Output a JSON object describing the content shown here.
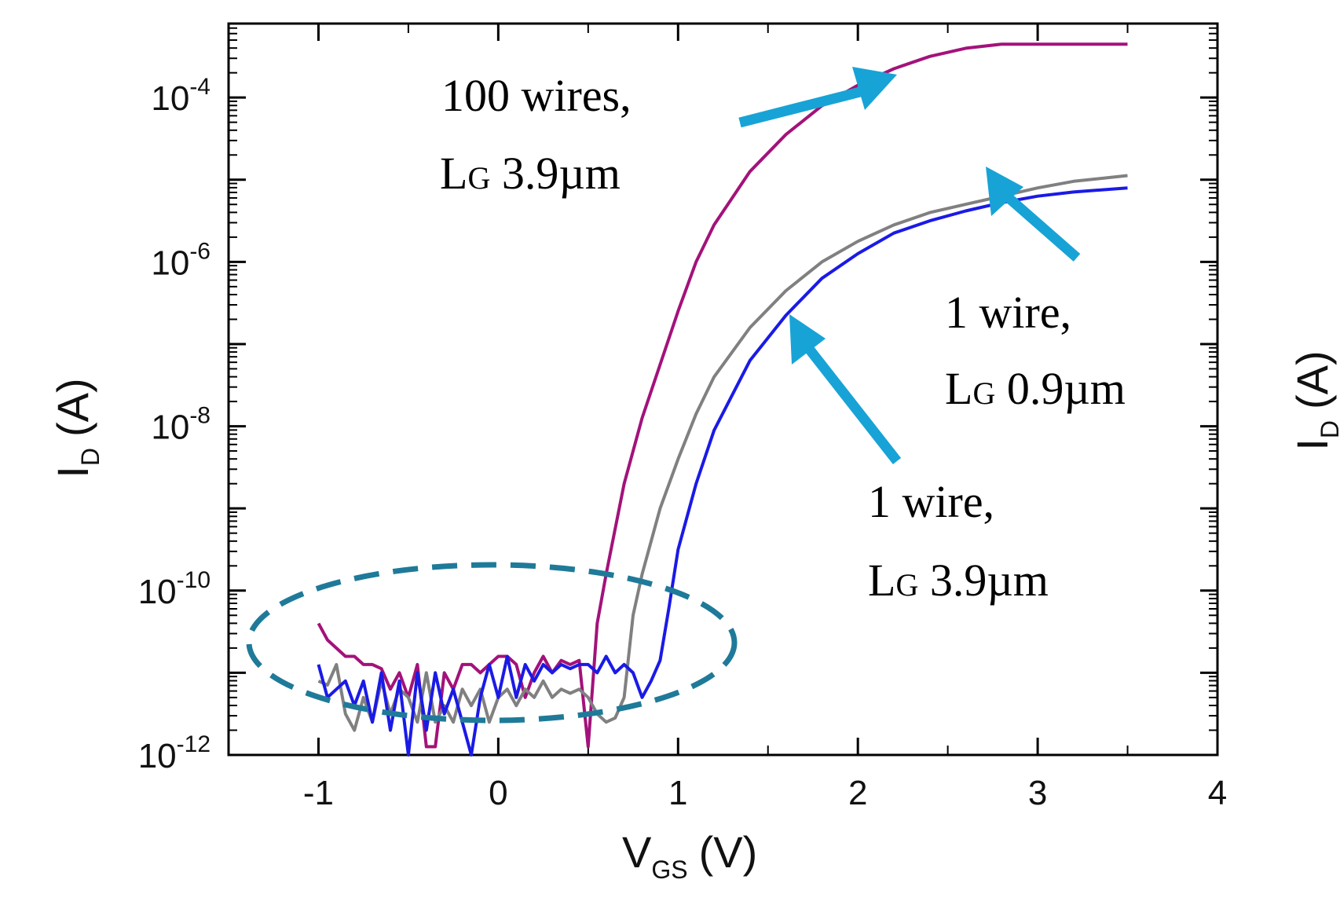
{
  "chart_data": {
    "type": "line",
    "title": "",
    "xlabel": {
      "main": "V",
      "sub": "GS",
      "unit": "(V)"
    },
    "ylabel": {
      "main": "I",
      "sub": "D",
      "unit": "(A)"
    },
    "ylabel_right": {
      "main": "I",
      "sub": "D",
      "unit": "(A)"
    },
    "xlim": [
      -1.5,
      4
    ],
    "ylim_log10": [
      -12,
      -3.1
    ],
    "y_scale": "log",
    "x_ticks": [
      {
        "value": -1,
        "label": "-1"
      },
      {
        "value": 0,
        "label": "0"
      },
      {
        "value": 1,
        "label": "1"
      },
      {
        "value": 2,
        "label": "2"
      },
      {
        "value": 3,
        "label": "3"
      },
      {
        "value": 4,
        "label": "4"
      }
    ],
    "y_ticks": [
      {
        "exp": -12,
        "base": "10",
        "power": "-12"
      },
      {
        "exp": -10,
        "base": "10",
        "power": "-10"
      },
      {
        "exp": -8,
        "base": "10",
        "power": "-8"
      },
      {
        "exp": -6,
        "base": "10",
        "power": "-6"
      },
      {
        "exp": -4,
        "base": "10",
        "power": "-4"
      }
    ],
    "series": [
      {
        "name": "100 wires, LG 3.9µm",
        "color": "#a3127a",
        "x": [
          -1.0,
          -0.95,
          -0.9,
          -0.85,
          -0.8,
          -0.75,
          -0.7,
          -0.65,
          -0.6,
          -0.55,
          -0.5,
          -0.45,
          -0.4,
          -0.35,
          -0.3,
          -0.25,
          -0.2,
          -0.15,
          -0.1,
          -0.05,
          0.0,
          0.05,
          0.1,
          0.15,
          0.2,
          0.25,
          0.3,
          0.35,
          0.4,
          0.45,
          0.5,
          0.55,
          0.6,
          0.7,
          0.8,
          0.9,
          1.0,
          1.1,
          1.2,
          1.4,
          1.6,
          1.8,
          2.0,
          2.2,
          2.4,
          2.6,
          2.8,
          3.0,
          3.2,
          3.5
        ],
        "log_y": [
          -10.4,
          -10.6,
          -10.7,
          -10.8,
          -10.8,
          -10.9,
          -10.9,
          -10.95,
          -11.2,
          -11.0,
          -11.3,
          -10.9,
          -11.9,
          -11.9,
          -11.0,
          -11.2,
          -10.9,
          -10.9,
          -11.0,
          -10.9,
          -10.8,
          -10.8,
          -10.9,
          -11.3,
          -11.0,
          -10.8,
          -11.0,
          -10.85,
          -10.9,
          -10.85,
          -11.9,
          -10.4,
          -9.8,
          -8.7,
          -7.9,
          -7.25,
          -6.6,
          -6.0,
          -5.55,
          -4.9,
          -4.45,
          -4.1,
          -3.85,
          -3.65,
          -3.5,
          -3.4,
          -3.35,
          -3.35,
          -3.35,
          -3.35
        ]
      },
      {
        "name": "1 wire, LG 0.9µm",
        "color": "#808080",
        "x": [
          -1.0,
          -0.95,
          -0.9,
          -0.85,
          -0.8,
          -0.75,
          -0.7,
          -0.65,
          -0.6,
          -0.55,
          -0.5,
          -0.45,
          -0.4,
          -0.35,
          -0.3,
          -0.25,
          -0.2,
          -0.15,
          -0.1,
          -0.05,
          0.0,
          0.05,
          0.1,
          0.15,
          0.2,
          0.25,
          0.3,
          0.35,
          0.4,
          0.45,
          0.5,
          0.55,
          0.6,
          0.65,
          0.7,
          0.75,
          0.8,
          0.9,
          1.0,
          1.1,
          1.2,
          1.4,
          1.6,
          1.8,
          2.0,
          2.2,
          2.4,
          2.6,
          2.8,
          3.0,
          3.2,
          3.5
        ],
        "log_y": [
          -11.1,
          -11.15,
          -10.9,
          -11.5,
          -11.7,
          -11.3,
          -11.6,
          -11.1,
          -11.5,
          -11.2,
          -11.3,
          -11.6,
          -11.0,
          -11.6,
          -11.4,
          -11.6,
          -11.2,
          -11.4,
          -11.2,
          -11.6,
          -11.3,
          -11.2,
          -11.4,
          -11.2,
          -11.3,
          -11.1,
          -11.3,
          -11.2,
          -11.25,
          -11.2,
          -11.3,
          -11.5,
          -11.6,
          -11.55,
          -11.3,
          -10.3,
          -9.8,
          -9.0,
          -8.4,
          -7.85,
          -7.4,
          -6.8,
          -6.35,
          -6.0,
          -5.75,
          -5.55,
          -5.4,
          -5.3,
          -5.2,
          -5.1,
          -5.02,
          -4.95
        ]
      },
      {
        "name": "1 wire, LG 3.9µm",
        "color": "#1a1ae6",
        "x": [
          -1.0,
          -0.95,
          -0.9,
          -0.85,
          -0.8,
          -0.75,
          -0.7,
          -0.65,
          -0.6,
          -0.55,
          -0.5,
          -0.45,
          -0.4,
          -0.35,
          -0.3,
          -0.25,
          -0.2,
          -0.15,
          -0.1,
          -0.05,
          0.0,
          0.05,
          0.1,
          0.15,
          0.2,
          0.25,
          0.3,
          0.35,
          0.4,
          0.45,
          0.5,
          0.55,
          0.6,
          0.65,
          0.7,
          0.75,
          0.8,
          0.85,
          0.9,
          0.95,
          1.0,
          1.1,
          1.2,
          1.4,
          1.6,
          1.8,
          2.0,
          2.2,
          2.4,
          2.6,
          2.8,
          3.0,
          3.2,
          3.5
        ],
        "log_y": [
          -10.9,
          -11.3,
          -11.2,
          -11.1,
          -11.4,
          -11.1,
          -11.6,
          -11.0,
          -11.7,
          -11.1,
          -12.0,
          -11.0,
          -11.7,
          -11.0,
          -11.5,
          -11.2,
          -11.6,
          -12.0,
          -11.3,
          -10.9,
          -11.3,
          -10.8,
          -11.3,
          -10.9,
          -11.1,
          -10.9,
          -11.0,
          -10.9,
          -10.95,
          -10.9,
          -10.9,
          -11.0,
          -10.8,
          -11.0,
          -10.9,
          -11.0,
          -11.3,
          -11.1,
          -10.85,
          -10.2,
          -9.5,
          -8.7,
          -8.05,
          -7.2,
          -6.65,
          -6.2,
          -5.9,
          -5.65,
          -5.5,
          -5.38,
          -5.28,
          -5.2,
          -5.15,
          -5.1
        ]
      }
    ],
    "annotations": [
      {
        "line1": "100 wires,",
        "line2_main": "L",
        "line2_sub": "G",
        "line2_rest": " 3.9µm"
      },
      {
        "line1": "1 wire,",
        "line2_main": "L",
        "line2_sub": "G",
        "line2_rest": " 0.9µm"
      },
      {
        "line1": "1 wire,",
        "line2_main": "L",
        "line2_sub": "G",
        "line2_rest": " 3.9µm"
      }
    ],
    "arrow_color": "#18a3d6",
    "highlight_color": "#1f7a99"
  }
}
